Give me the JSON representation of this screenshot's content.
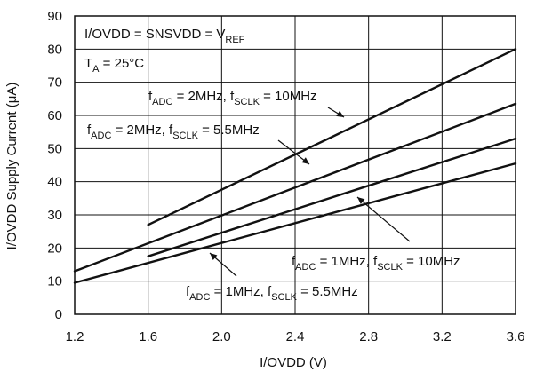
{
  "chart_data": {
    "type": "line",
    "xlabel": "I/OVDD (V)",
    "ylabel_parts": [
      "I/OVDD Supply Current (",
      "μ",
      "A)"
    ],
    "xlim": [
      1.2,
      3.6
    ],
    "ylim": [
      0,
      90
    ],
    "x_ticks": [
      1.2,
      1.6,
      2.0,
      2.4,
      2.8,
      3.2,
      3.6
    ],
    "x_tick_labels": [
      "1.2",
      "1.6",
      "2.0",
      "2.4",
      "2.8",
      "3.2",
      "3.6"
    ],
    "y_ticks": [
      0,
      10,
      20,
      30,
      40,
      50,
      60,
      70,
      80,
      90
    ],
    "y_tick_labels": [
      "0",
      "10",
      "20",
      "30",
      "40",
      "50",
      "60",
      "70",
      "80",
      "90"
    ],
    "grid": true,
    "conditions": {
      "line1": [
        "I/OVDD = SNSVDD = V",
        "REF"
      ],
      "line2": [
        "T",
        "A",
        " = 25°C"
      ]
    },
    "series": [
      {
        "label_parts": [
          "f",
          "ADC",
          " = 2MHz, f",
          "SCLK",
          " = 10MHz"
        ],
        "x": [
          1.6,
          3.6
        ],
        "y": [
          27,
          80
        ]
      },
      {
        "label_parts": [
          "f",
          "ADC",
          " = 2MHz, f",
          "SCLK",
          " = 5.5MHz"
        ],
        "x": [
          1.2,
          3.6
        ],
        "y": [
          13,
          63.5
        ]
      },
      {
        "label_parts": [
          "f",
          "ADC",
          " = 1MHz, f",
          "SCLK",
          " = 10MHz"
        ],
        "x": [
          1.6,
          3.6
        ],
        "y": [
          17.5,
          53
        ]
      },
      {
        "label_parts": [
          "f",
          "ADC",
          " = 1MHz, f",
          "SCLK",
          " = 5.5MHz"
        ],
        "x": [
          1.2,
          3.6
        ],
        "y": [
          9.5,
          45.5
        ]
      }
    ]
  }
}
